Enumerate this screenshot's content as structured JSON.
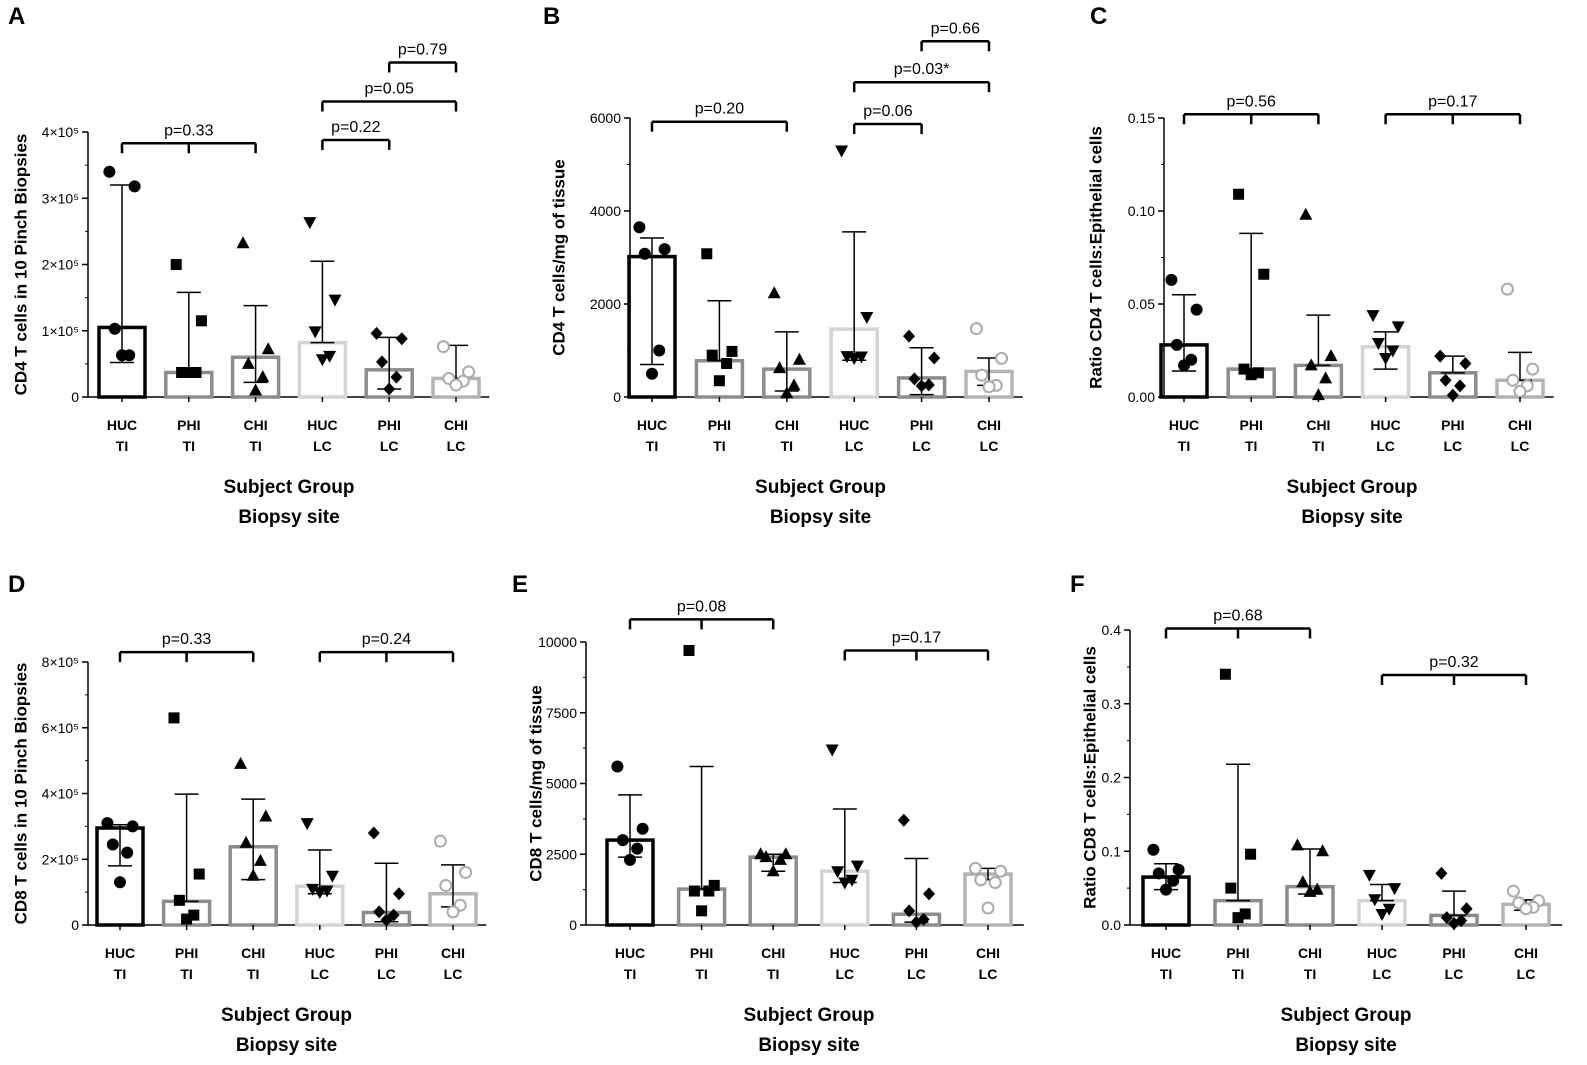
{
  "figure": {
    "colors": {
      "HUC_TI": "#000000",
      "PHI_TI": "#8c8c8c",
      "CHI_TI": "#8c8c8c",
      "HUC_LC": "#d4d4d4",
      "PHI_LC": "#8c8c8c",
      "CHI_LC": "#b4b4b4"
    }
  },
  "chart_data": [
    {
      "letter": "A",
      "type": "bar",
      "ylabel": "CD4 T cells in 10 Pinch Biopsies",
      "ylim": [
        0,
        400000
      ],
      "ytick_labels": [
        "0",
        "1×10⁵",
        "2×10⁵",
        "3×10⁵",
        "4×10⁵"
      ],
      "ytick_values": [
        0,
        100000,
        200000,
        300000,
        400000
      ],
      "categories": [
        [
          "HUC",
          "TI"
        ],
        [
          "PHI",
          "TI"
        ],
        [
          "CHI",
          "TI"
        ],
        [
          "HUC",
          "LC"
        ],
        [
          "PHI",
          "LC"
        ],
        [
          "CHI",
          "LC"
        ]
      ],
      "xtitle": [
        "Subject Group",
        "Biopsy site"
      ],
      "medians": [
        105000,
        37000,
        60000,
        82000,
        41000,
        28000
      ],
      "error_low": [
        52000,
        37000,
        22000,
        82000,
        12000,
        28000
      ],
      "error_high": [
        320000,
        158000,
        138000,
        205000,
        90000,
        78000
      ],
      "points": [
        [
          340000,
          318000,
          103000,
          63000,
          63000
        ],
        [
          200000,
          115000,
          37000,
          37000,
          37000
        ],
        [
          232000,
          72000,
          50000,
          30000,
          10000
        ],
        [
          264000,
          147000,
          99000,
          62000,
          57000
        ],
        [
          96000,
          88000,
          53000,
          30000,
          12000
        ],
        [
          76000,
          38000,
          28000,
          24000,
          18000
        ]
      ],
      "markers": [
        "circle",
        "square",
        "triangle",
        "triangle-down",
        "diamond",
        "open-circle"
      ],
      "comparisons": [
        {
          "type": "triple",
          "from": 0,
          "to": 2,
          "y": 383000,
          "label": "p=0.33"
        },
        {
          "type": "pair",
          "from": 3,
          "to": 4,
          "y": 388000,
          "label": "p=0.22"
        },
        {
          "type": "pair",
          "from": 3,
          "to": 5,
          "y": 446000,
          "label": "p=0.05"
        },
        {
          "type": "pair",
          "from": 4,
          "to": 5,
          "y": 505000,
          "label": "p=0.79"
        }
      ]
    },
    {
      "letter": "B",
      "type": "bar",
      "ylabel": "CD4 T cells/mg of tissue",
      "ylim": [
        0,
        6000
      ],
      "ytick_labels": [
        "0",
        "2000",
        "4000",
        "6000"
      ],
      "ytick_values": [
        0,
        2000,
        4000,
        6000
      ],
      "categories": [
        [
          "HUC",
          "TI"
        ],
        [
          "PHI",
          "TI"
        ],
        [
          "CHI",
          "TI"
        ],
        [
          "HUC",
          "LC"
        ],
        [
          "PHI",
          "LC"
        ],
        [
          "CHI",
          "LC"
        ]
      ],
      "xtitle": [
        "Subject Group",
        "Biopsy site"
      ],
      "medians": [
        3020,
        780,
        600,
        1460,
        410,
        550
      ],
      "error_low": [
        700,
        780,
        130,
        790,
        50,
        250
      ],
      "error_high": [
        3420,
        2070,
        1400,
        3550,
        1060,
        840
      ],
      "points": [
        [
          3650,
          3180,
          3080,
          1000,
          500
        ],
        [
          3080,
          980,
          900,
          720,
          350
        ],
        [
          2230,
          800,
          620,
          250,
          80
        ],
        [
          5300,
          1720,
          880,
          870,
          840
        ],
        [
          1310,
          840,
          390,
          260,
          240
        ],
        [
          1470,
          830,
          470,
          250,
          220
        ]
      ],
      "markers": [
        "circle",
        "square",
        "triangle",
        "triangle-down",
        "diamond",
        "open-circle"
      ],
      "comparisons": [
        {
          "type": "pair",
          "from": 0,
          "to": 2,
          "y": 5920,
          "label": "p=0.20"
        },
        {
          "type": "pair",
          "from": 3,
          "to": 4,
          "y": 5870,
          "label": "p=0.06"
        },
        {
          "type": "pair",
          "from": 3,
          "to": 5,
          "y": 6770,
          "label": "p=0.03*"
        },
        {
          "type": "pair",
          "from": 4,
          "to": 5,
          "y": 7650,
          "label": "p=0.66"
        }
      ]
    },
    {
      "letter": "C",
      "type": "bar",
      "ylabel": "Ratio CD4 T cells:Epithelial cells",
      "ylim": [
        0,
        0.15
      ],
      "ytick_labels": [
        "0.00",
        "0.05",
        "0.10",
        "0.15"
      ],
      "ytick_values": [
        0,
        0.05,
        0.1,
        0.15
      ],
      "categories": [
        [
          "HUC",
          "TI"
        ],
        [
          "PHI",
          "TI"
        ],
        [
          "CHI",
          "TI"
        ],
        [
          "HUC",
          "LC"
        ],
        [
          "PHI",
          "LC"
        ],
        [
          "CHI",
          "LC"
        ]
      ],
      "xtitle": [
        "Subject Group",
        "Biopsy site"
      ],
      "medians": [
        0.028,
        0.015,
        0.017,
        0.027,
        0.013,
        0.009
      ],
      "error_low": [
        0.014,
        0.015,
        0.017,
        0.015,
        0.013,
        0.009
      ],
      "error_high": [
        0.055,
        0.088,
        0.044,
        0.035,
        0.022,
        0.024
      ],
      "points": [
        [
          0.063,
          0.047,
          0.028,
          0.02,
          0.017
        ],
        [
          0.109,
          0.066,
          0.015,
          0.013,
          0.012
        ],
        [
          0.098,
          0.022,
          0.017,
          0.01,
          0.001
        ],
        [
          0.044,
          0.038,
          0.029,
          0.025,
          0.021
        ],
        [
          0.022,
          0.018,
          0.009,
          0.006,
          0.001
        ],
        [
          0.058,
          0.015,
          0.009,
          0.006,
          0.003
        ]
      ],
      "markers": [
        "circle",
        "square",
        "triangle",
        "triangle-down",
        "diamond",
        "open-circle"
      ],
      "comparisons": [
        {
          "type": "triple",
          "from": 0,
          "to": 2,
          "y": 0.152,
          "label": "p=0.56"
        },
        {
          "type": "triple",
          "from": 3,
          "to": 5,
          "y": 0.152,
          "label": "p=0.17"
        }
      ]
    },
    {
      "letter": "D",
      "type": "bar",
      "ylabel": "CD8 T cells in 10 Pinch Biopsies",
      "ylim": [
        0,
        800000
      ],
      "ytick_labels": [
        "0",
        "2×10⁵",
        "4×10⁵",
        "6×10⁵",
        "8×10⁵"
      ],
      "ytick_values": [
        0,
        200000,
        400000,
        600000,
        800000
      ],
      "categories": [
        [
          "HUC",
          "TI"
        ],
        [
          "PHI",
          "TI"
        ],
        [
          "CHI",
          "TI"
        ],
        [
          "HUC",
          "LC"
        ],
        [
          "PHI",
          "LC"
        ],
        [
          "CHI",
          "LC"
        ]
      ],
      "xtitle": [
        "Subject Group",
        "Biopsy site"
      ],
      "medians": [
        295000,
        72000,
        238000,
        118000,
        38000,
        95000
      ],
      "error_low": [
        180000,
        72000,
        138000,
        95000,
        10000,
        55000
      ],
      "error_high": [
        305000,
        398000,
        383000,
        228000,
        188000,
        183000
      ],
      "points": [
        [
          310000,
          300000,
          245000,
          220000,
          130000
        ],
        [
          630000,
          155000,
          75000,
          30000,
          18000
        ],
        [
          490000,
          330000,
          250000,
          195000,
          150000
        ],
        [
          310000,
          150000,
          110000,
          105000,
          100000
        ],
        [
          280000,
          95000,
          40000,
          30000,
          15000
        ],
        [
          255000,
          160000,
          120000,
          60000,
          40000
        ]
      ],
      "markers": [
        "circle",
        "square",
        "triangle",
        "triangle-down",
        "diamond",
        "open-circle"
      ],
      "comparisons": [
        {
          "type": "triple",
          "from": 0,
          "to": 2,
          "y": 830000,
          "label": "p=0.33"
        },
        {
          "type": "triple",
          "from": 3,
          "to": 5,
          "y": 830000,
          "label": "p=0.24"
        }
      ]
    },
    {
      "letter": "E",
      "type": "bar",
      "ylabel": "CD8 T cells/mg of tissue",
      "ylim": [
        0,
        10000
      ],
      "ytick_labels": [
        "0",
        "2500",
        "5000",
        "7500",
        "10000"
      ],
      "ytick_values": [
        0,
        2500,
        5000,
        7500,
        10000
      ],
      "categories": [
        [
          "HUC",
          "TI"
        ],
        [
          "PHI",
          "TI"
        ],
        [
          "CHI",
          "TI"
        ],
        [
          "HUC",
          "LC"
        ],
        [
          "PHI",
          "LC"
        ],
        [
          "CHI",
          "LC"
        ]
      ],
      "xtitle": [
        "Subject Group",
        "Biopsy site"
      ],
      "medians": [
        3000,
        1270,
        2400,
        1900,
        380,
        1800
      ],
      "error_low": [
        2400,
        1270,
        1900,
        1500,
        100,
        1600
      ],
      "error_high": [
        4600,
        5600,
        2500,
        4100,
        2350,
        2000
      ],
      "points": [
        [
          5600,
          3400,
          3000,
          2700,
          2300
        ],
        [
          9700,
          1400,
          1200,
          1200,
          500
        ],
        [
          2500,
          2500,
          2400,
          2300,
          1900
        ],
        [
          6200,
          2100,
          1900,
          1600,
          1500
        ],
        [
          3700,
          1100,
          500,
          200,
          100
        ],
        [
          2000,
          1900,
          1600,
          1500,
          600
        ]
      ],
      "markers": [
        "circle",
        "square",
        "triangle",
        "triangle-down",
        "diamond",
        "open-circle"
      ],
      "comparisons": [
        {
          "type": "triple",
          "from": 0,
          "to": 2,
          "y": 10800,
          "label": "p=0.08"
        },
        {
          "type": "triple",
          "from": 3,
          "to": 5,
          "y": 9700,
          "label": "p=0.17"
        }
      ]
    },
    {
      "letter": "F",
      "type": "bar",
      "ylabel": "Ratio CD8 T cells:Epithelial cells",
      "ylim": [
        0,
        0.4
      ],
      "ytick_labels": [
        "0.0",
        "0.1",
        "0.2",
        "0.3",
        "0.4"
      ],
      "ytick_values": [
        0,
        0.1,
        0.2,
        0.3,
        0.4
      ],
      "categories": [
        [
          "HUC",
          "TI"
        ],
        [
          "PHI",
          "TI"
        ],
        [
          "CHI",
          "TI"
        ],
        [
          "HUC",
          "LC"
        ],
        [
          "PHI",
          "LC"
        ],
        [
          "CHI",
          "LC"
        ]
      ],
      "xtitle": [
        "Subject Group",
        "Biopsy site"
      ],
      "medians": [
        0.065,
        0.033,
        0.052,
        0.033,
        0.013,
        0.028
      ],
      "error_low": [
        0.048,
        0.033,
        0.042,
        0.033,
        0.013,
        0.02
      ],
      "error_high": [
        0.083,
        0.218,
        0.103,
        0.055,
        0.046,
        0.034
      ],
      "points": [
        [
          0.102,
          0.075,
          0.07,
          0.06,
          0.048
        ],
        [
          0.34,
          0.096,
          0.05,
          0.015,
          0.01
        ],
        [
          0.108,
          0.1,
          0.058,
          0.048,
          0.045
        ],
        [
          0.068,
          0.05,
          0.035,
          0.022,
          0.015
        ],
        [
          0.07,
          0.022,
          0.01,
          0.006,
          0.002
        ],
        [
          0.046,
          0.033,
          0.03,
          0.024,
          0.022
        ]
      ],
      "markers": [
        "circle",
        "square",
        "triangle",
        "triangle-down",
        "diamond",
        "open-circle"
      ],
      "comparisons": [
        {
          "type": "triple",
          "from": 0,
          "to": 2,
          "y": 0.402,
          "label": "p=0.68"
        },
        {
          "type": "triple",
          "from": 3,
          "to": 5,
          "y": 0.339,
          "label": "p=0.32"
        }
      ]
    }
  ]
}
